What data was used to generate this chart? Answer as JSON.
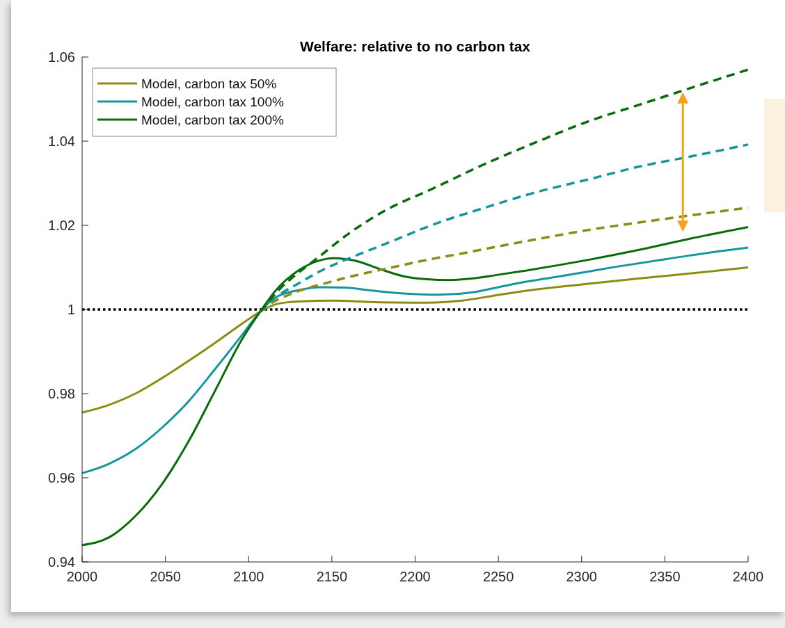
{
  "chart_data": {
    "type": "line",
    "title": "Welfare: relative to no carbon tax",
    "xlim": [
      2000,
      2400
    ],
    "xticks": [
      2000,
      2050,
      2100,
      2150,
      2200,
      2250,
      2300,
      2350,
      2400
    ],
    "ylim": [
      0.94,
      1.06
    ],
    "yticks": [
      0.94,
      0.96,
      0.98,
      1,
      1.02,
      1.04,
      1.06
    ],
    "legend": "top left",
    "ref_lines": [
      {
        "axis": "y",
        "value": 1,
        "color": "#000000",
        "line_style": "dotted"
      }
    ],
    "series": [
      {
        "name": "Model, carbon tax 50%",
        "color": "#8c8c12",
        "line_style": "solid",
        "x": [
          2000,
          2016,
          2032,
          2048,
          2064,
          2080,
          2096,
          2107,
          2117,
          2130,
          2151,
          2179,
          2207,
          2228,
          2249,
          2264,
          2304,
          2335,
          2366,
          2400
        ],
        "values": [
          0.9755,
          0.9773,
          0.98,
          0.9837,
          0.9878,
          0.9921,
          0.9966,
          0.9995,
          1.0013,
          1.0019,
          1.0021,
          1.0017,
          1.0016,
          1.0021,
          1.0034,
          1.0043,
          1.0061,
          1.0074,
          1.0086,
          1.01
        ]
      },
      {
        "name": "Model, carbon tax 100%",
        "color": "#17959c",
        "line_style": "solid",
        "x": [
          2000,
          2016,
          2032,
          2048,
          2064,
          2080,
          2096,
          2107,
          2116,
          2130,
          2144,
          2158,
          2172,
          2193,
          2214,
          2235,
          2249,
          2264,
          2289,
          2320,
          2351,
          2382,
          2400
        ],
        "values": [
          0.9611,
          0.9633,
          0.9668,
          0.9719,
          0.9782,
          0.9859,
          0.9939,
          0.9995,
          1.0028,
          1.0046,
          1.0053,
          1.0052,
          1.0046,
          1.0038,
          1.0035,
          1.0041,
          1.0052,
          1.0064,
          1.008,
          1.0101,
          1.012,
          1.0138,
          1.0147
        ]
      },
      {
        "name": "Model, carbon tax 200%",
        "color": "#0a6b0a",
        "line_style": "solid",
        "x": [
          2000,
          2016,
          2032,
          2048,
          2064,
          2080,
          2096,
          2107,
          2116,
          2130,
          2144,
          2151,
          2158,
          2165,
          2179,
          2193,
          2207,
          2221,
          2235,
          2249,
          2264,
          2304,
          2335,
          2366,
          2400
        ],
        "values": [
          0.944,
          0.9458,
          0.9509,
          0.9585,
          0.9687,
          0.9808,
          0.9929,
          0.9995,
          1.0044,
          1.0093,
          1.0118,
          1.0122,
          1.012,
          1.0115,
          1.0096,
          1.0079,
          1.0072,
          1.007,
          1.0074,
          1.0082,
          1.0091,
          1.0118,
          1.0142,
          1.0169,
          1.0196
        ]
      },
      {
        "color": "#8c8c12",
        "line_style": "dashed",
        "x": [
          2107,
          2115,
          2123,
          2130,
          2144,
          2158,
          2172,
          2186,
          2200,
          2214,
          2228,
          2242,
          2273,
          2304,
          2335,
          2366,
          2400
        ],
        "values": [
          0.9995,
          1.0018,
          1.0033,
          1.0044,
          1.006,
          1.0075,
          1.0088,
          1.01,
          1.0112,
          1.0123,
          1.0133,
          1.0144,
          1.0167,
          1.0189,
          1.0207,
          1.0224,
          1.0242
        ]
      },
      {
        "color": "#17959c",
        "line_style": "dashed",
        "x": [
          2107,
          2116,
          2130,
          2144,
          2165,
          2186,
          2211,
          2242,
          2273,
          2304,
          2335,
          2366,
          2400
        ],
        "values": [
          0.9995,
          1.0028,
          1.0062,
          1.0093,
          1.0129,
          1.0162,
          1.0202,
          1.0242,
          1.0279,
          1.0309,
          1.034,
          1.0364,
          1.0392
        ]
      },
      {
        "color": "#0a6b0a",
        "line_style": "dashed",
        "x": [
          2107,
          2118,
          2130,
          2139,
          2160,
          2181,
          2211,
          2242,
          2273,
          2304,
          2335,
          2366,
          2400
        ],
        "values": [
          0.9995,
          1.0046,
          1.0088,
          1.0115,
          1.018,
          1.0233,
          1.0288,
          1.0346,
          1.0398,
          1.0447,
          1.0487,
          1.0527,
          1.057
        ]
      }
    ]
  }
}
